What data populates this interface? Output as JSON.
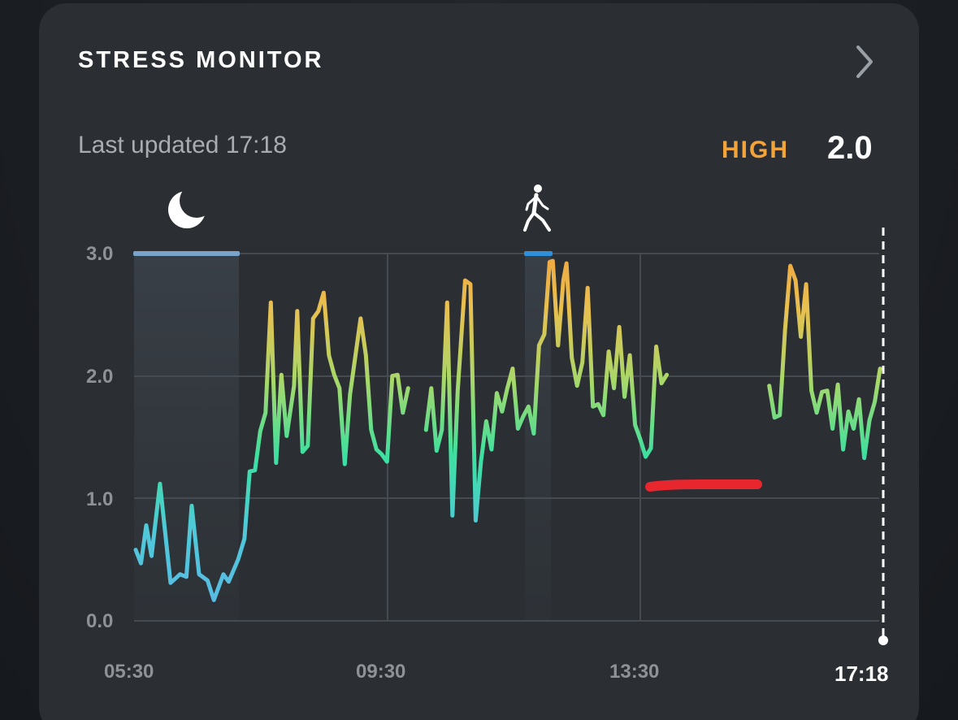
{
  "header": {
    "title": "STRESS MONITOR",
    "chevron_icon": "chevron-right-icon"
  },
  "status": {
    "last_updated": "Last updated 17:18",
    "level_label": "HIGH",
    "level_value": "2.0"
  },
  "colors": {
    "card": "#2b2f34",
    "high_label": "#f2a43a",
    "sleep_bar": "#7aa3c9",
    "activity_bar": "#2f8fd8",
    "annotation": "#e8262e",
    "low_stress": "#55c5de",
    "mid_stress": "#3de0a0",
    "high_stress": "#f0b040"
  },
  "events": [
    {
      "icon": "moon-icon",
      "start": "05:30",
      "end": "07:10"
    },
    {
      "icon": "walking-person-icon",
      "start": "11:35",
      "end": "12:00"
    }
  ],
  "annotation": {
    "icon": "red-marker-stroke",
    "start": "13:40",
    "end": "15:20",
    "y": 1.1
  },
  "chart_data": {
    "type": "line",
    "yticks": [
      "3.0",
      "2.0",
      "1.0",
      "0.0"
    ],
    "xticks": [
      "05:30",
      "09:30",
      "13:30",
      "17:18"
    ],
    "ylim": [
      0,
      3
    ],
    "xlim": [
      "05:30",
      "17:18"
    ],
    "grid": true,
    "series": [
      {
        "points": [
          [
            "05:30",
            0.58
          ],
          [
            "05:35",
            0.47
          ],
          [
            "05:40",
            0.78
          ],
          [
            "05:45",
            0.53
          ],
          [
            "05:53",
            1.12
          ],
          [
            "06:03",
            0.31
          ],
          [
            "06:12",
            0.38
          ],
          [
            "06:18",
            0.36
          ],
          [
            "06:23",
            0.94
          ],
          [
            "06:30",
            0.38
          ],
          [
            "06:38",
            0.33
          ],
          [
            "06:44",
            0.17
          ],
          [
            "06:53",
            0.38
          ],
          [
            "06:58",
            0.32
          ],
          [
            "07:07",
            0.5
          ],
          [
            "07:13",
            0.67
          ],
          [
            "07:18",
            1.22
          ],
          [
            "07:23",
            1.23
          ],
          [
            "07:28",
            1.55
          ],
          [
            "07:33",
            1.7
          ],
          [
            "07:38",
            2.6
          ],
          [
            "07:43",
            1.29
          ],
          [
            "07:48",
            2.01
          ],
          [
            "07:53",
            1.51
          ],
          [
            "08:00",
            1.92
          ],
          [
            "08:03",
            2.53
          ],
          [
            "08:08",
            1.38
          ],
          [
            "08:13",
            1.43
          ],
          [
            "08:18",
            2.47
          ],
          [
            "08:23",
            2.53
          ],
          [
            "08:28",
            2.68
          ],
          [
            "08:33",
            2.17
          ],
          [
            "08:38",
            2.01
          ],
          [
            "08:43",
            1.9
          ],
          [
            "08:48",
            1.28
          ],
          [
            "08:53",
            1.85
          ],
          [
            "09:03",
            2.47
          ],
          [
            "09:08",
            2.17
          ],
          [
            "09:13",
            1.56
          ],
          [
            "09:18",
            1.4
          ],
          [
            "09:23",
            1.36
          ],
          [
            "09:28",
            1.3
          ],
          [
            "09:33",
            2.0
          ],
          [
            "09:38",
            2.01
          ],
          [
            "09:43",
            1.7
          ],
          [
            "09:48",
            1.9
          ],
          [
            null,
            null
          ],
          [
            "10:05",
            1.56
          ],
          [
            "10:10",
            1.9
          ],
          [
            "10:15",
            1.39
          ],
          [
            "10:20",
            1.56
          ],
          [
            "10:25",
            2.6
          ],
          [
            "10:30",
            0.86
          ],
          [
            "10:35",
            1.88
          ],
          [
            "10:42",
            2.78
          ],
          [
            "10:47",
            2.75
          ],
          [
            "10:52",
            0.82
          ],
          [
            "10:57",
            1.3
          ],
          [
            "11:02",
            1.63
          ],
          [
            "11:07",
            1.4
          ],
          [
            "11:12",
            1.86
          ],
          [
            "11:17",
            1.71
          ],
          [
            "11:22",
            1.9
          ],
          [
            "11:27",
            2.06
          ],
          [
            "11:32",
            1.57
          ],
          [
            "11:37",
            1.67
          ],
          [
            "11:42",
            1.75
          ],
          [
            "11:47",
            1.53
          ],
          [
            "11:52",
            2.25
          ],
          [
            "11:57",
            2.34
          ],
          [
            "12:02",
            2.93
          ],
          [
            "12:05",
            2.94
          ],
          [
            "12:10",
            2.25
          ],
          [
            "12:15",
            2.78
          ],
          [
            "12:18",
            2.92
          ],
          [
            "12:23",
            2.15
          ],
          [
            "12:28",
            1.92
          ],
          [
            "12:33",
            2.11
          ],
          [
            "12:38",
            2.72
          ],
          [
            "12:43",
            1.75
          ],
          [
            "12:48",
            1.77
          ],
          [
            "12:53",
            1.68
          ],
          [
            "12:58",
            2.2
          ],
          [
            "13:03",
            1.9
          ],
          [
            "13:08",
            2.4
          ],
          [
            "13:13",
            1.83
          ],
          [
            "13:18",
            2.17
          ],
          [
            "13:23",
            1.6
          ],
          [
            "13:28",
            1.48
          ],
          [
            "13:33",
            1.34
          ],
          [
            "13:38",
            1.41
          ],
          [
            "13:43",
            2.24
          ],
          [
            "13:48",
            1.94
          ],
          [
            "13:53",
            2.01
          ],
          [
            null,
            null
          ],
          [
            "15:30",
            1.92
          ],
          [
            "15:35",
            1.66
          ],
          [
            "15:40",
            1.68
          ],
          [
            "15:45",
            2.38
          ],
          [
            "15:50",
            2.9
          ],
          [
            "15:55",
            2.78
          ],
          [
            "16:00",
            2.32
          ],
          [
            "16:05",
            2.75
          ],
          [
            "16:10",
            1.88
          ],
          [
            "16:15",
            1.7
          ],
          [
            "16:20",
            1.87
          ],
          [
            "16:25",
            1.88
          ],
          [
            "16:30",
            1.57
          ],
          [
            "16:35",
            1.93
          ],
          [
            "16:40",
            1.4
          ],
          [
            "16:45",
            1.71
          ],
          [
            "16:50",
            1.57
          ],
          [
            "16:55",
            1.81
          ],
          [
            "17:00",
            1.33
          ],
          [
            "17:05",
            1.64
          ],
          [
            "17:10",
            1.79
          ],
          [
            "17:15",
            2.06
          ]
        ]
      }
    ]
  }
}
